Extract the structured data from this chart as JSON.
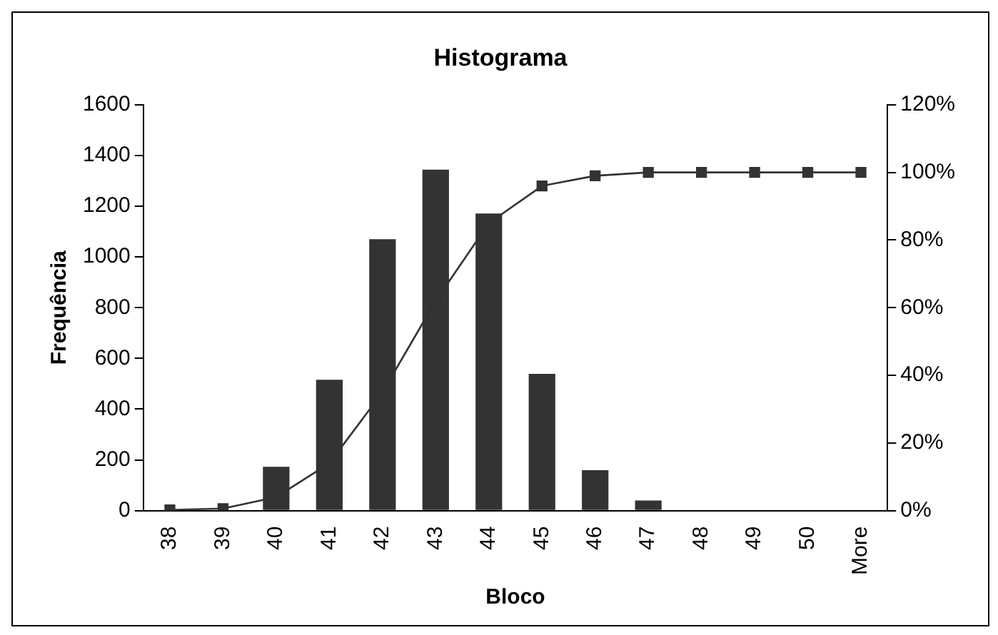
{
  "chart_data": {
    "type": "bar",
    "title": "Histograma",
    "xlabel": "Bloco",
    "ylabel": "Frequência",
    "categories": [
      "38",
      "39",
      "40",
      "41",
      "42",
      "43",
      "44",
      "45",
      "46",
      "47",
      "48",
      "49",
      "50",
      "More"
    ],
    "series": [
      {
        "color": "#333333",
        "values": [
          null,
          null,
          173,
          516,
          1070,
          1344,
          1171,
          539,
          159,
          40,
          0,
          0,
          0,
          0
        ]
      },
      {
        "type": "line",
        "axis": "y2",
        "color": "#333333",
        "marker": "square",
        "values": [
          0.2,
          0.6,
          4,
          14,
          35,
          62,
          85,
          96,
          99,
          100,
          100,
          100,
          100,
          100
        ]
      }
    ],
    "ylim": [
      0,
      1600
    ],
    "yticks": [
      0,
      200,
      400,
      600,
      800,
      1000,
      1200,
      1400,
      1600
    ],
    "y2lim": [
      0,
      120
    ],
    "y2ticks": [
      {
        "value": 0,
        "label": "0%"
      },
      {
        "value": 20,
        "label": "20%"
      },
      {
        "value": 40,
        "label": "40%"
      },
      {
        "value": 60,
        "label": "60%"
      },
      {
        "value": 80,
        "label": "80%"
      },
      {
        "value": 100,
        "label": "100%"
      },
      {
        "value": 120,
        "label": "120%"
      }
    ],
    "grid": false,
    "legend": false
  }
}
